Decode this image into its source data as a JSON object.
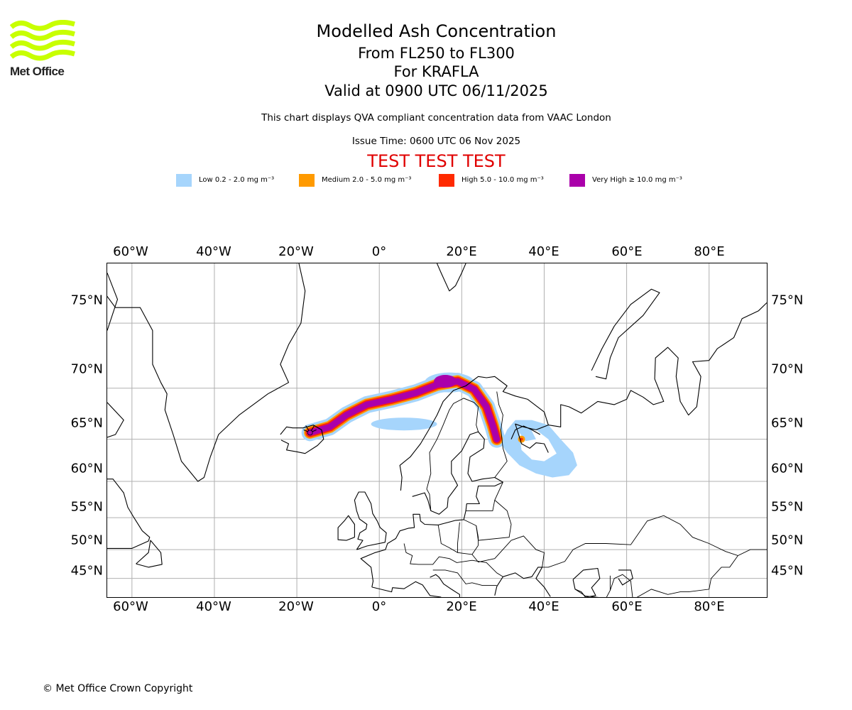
{
  "header": {
    "logo_text": "Met Office",
    "title": "Modelled Ash Concentration",
    "subtitle_levels": "From FL250 to FL300",
    "subtitle_volcano": "For KRAFLA",
    "subtitle_valid": "Valid at 0900 UTC 06/11/2025",
    "description": "This chart displays QVA compliant concentration data from VAAC London",
    "issue_time": "Issue Time: 0600 UTC 06 Nov 2025",
    "test_banner": "TEST TEST TEST"
  },
  "legend": [
    {
      "label": "Low 0.2 - 2.0 mg m⁻³",
      "color": "#a6d5fc"
    },
    {
      "label": "Medium 2.0 - 5.0 mg m⁻³",
      "color": "#ff9a00"
    },
    {
      "label": "High 5.0 - 10.0 mg m⁻³",
      "color": "#ff2a00"
    },
    {
      "label": "Very High ≥ 10.0 mg m⁻³",
      "color": "#aa00aa"
    }
  ],
  "map": {
    "projection": "Mercator",
    "lon_range": [
      -66,
      94
    ],
    "lat_range": [
      41.5,
      78.5
    ],
    "longitude_labels": [
      "60°W",
      "40°W",
      "20°W",
      "0°",
      "20°E",
      "40°E",
      "60°E",
      "80°E"
    ],
    "latitude_labels": [
      "75°N",
      "70°N",
      "65°N",
      "60°N",
      "55°N",
      "50°N",
      "45°N"
    ],
    "gridlines": true,
    "volcano": {
      "name": "KRAFLA",
      "lon": -16.8,
      "lat": 65.7
    },
    "plume_path": [
      [
        -16.8,
        65.7
      ],
      [
        -12,
        66.3
      ],
      [
        -8,
        67.5
      ],
      [
        -3,
        68.5
      ],
      [
        3,
        69.0
      ],
      [
        9,
        69.6
      ],
      [
        14,
        70.3
      ],
      [
        19,
        70.6
      ],
      [
        23,
        69.9
      ],
      [
        26,
        68.3
      ],
      [
        27.5,
        66.5
      ],
      [
        28.5,
        65.0
      ]
    ],
    "low_region_east_center": [
      40,
      62.5
    ],
    "medium_spot_east": [
      34.5,
      65.0
    ]
  },
  "footer": {
    "copyright": "© Met Office Crown Copyright"
  }
}
